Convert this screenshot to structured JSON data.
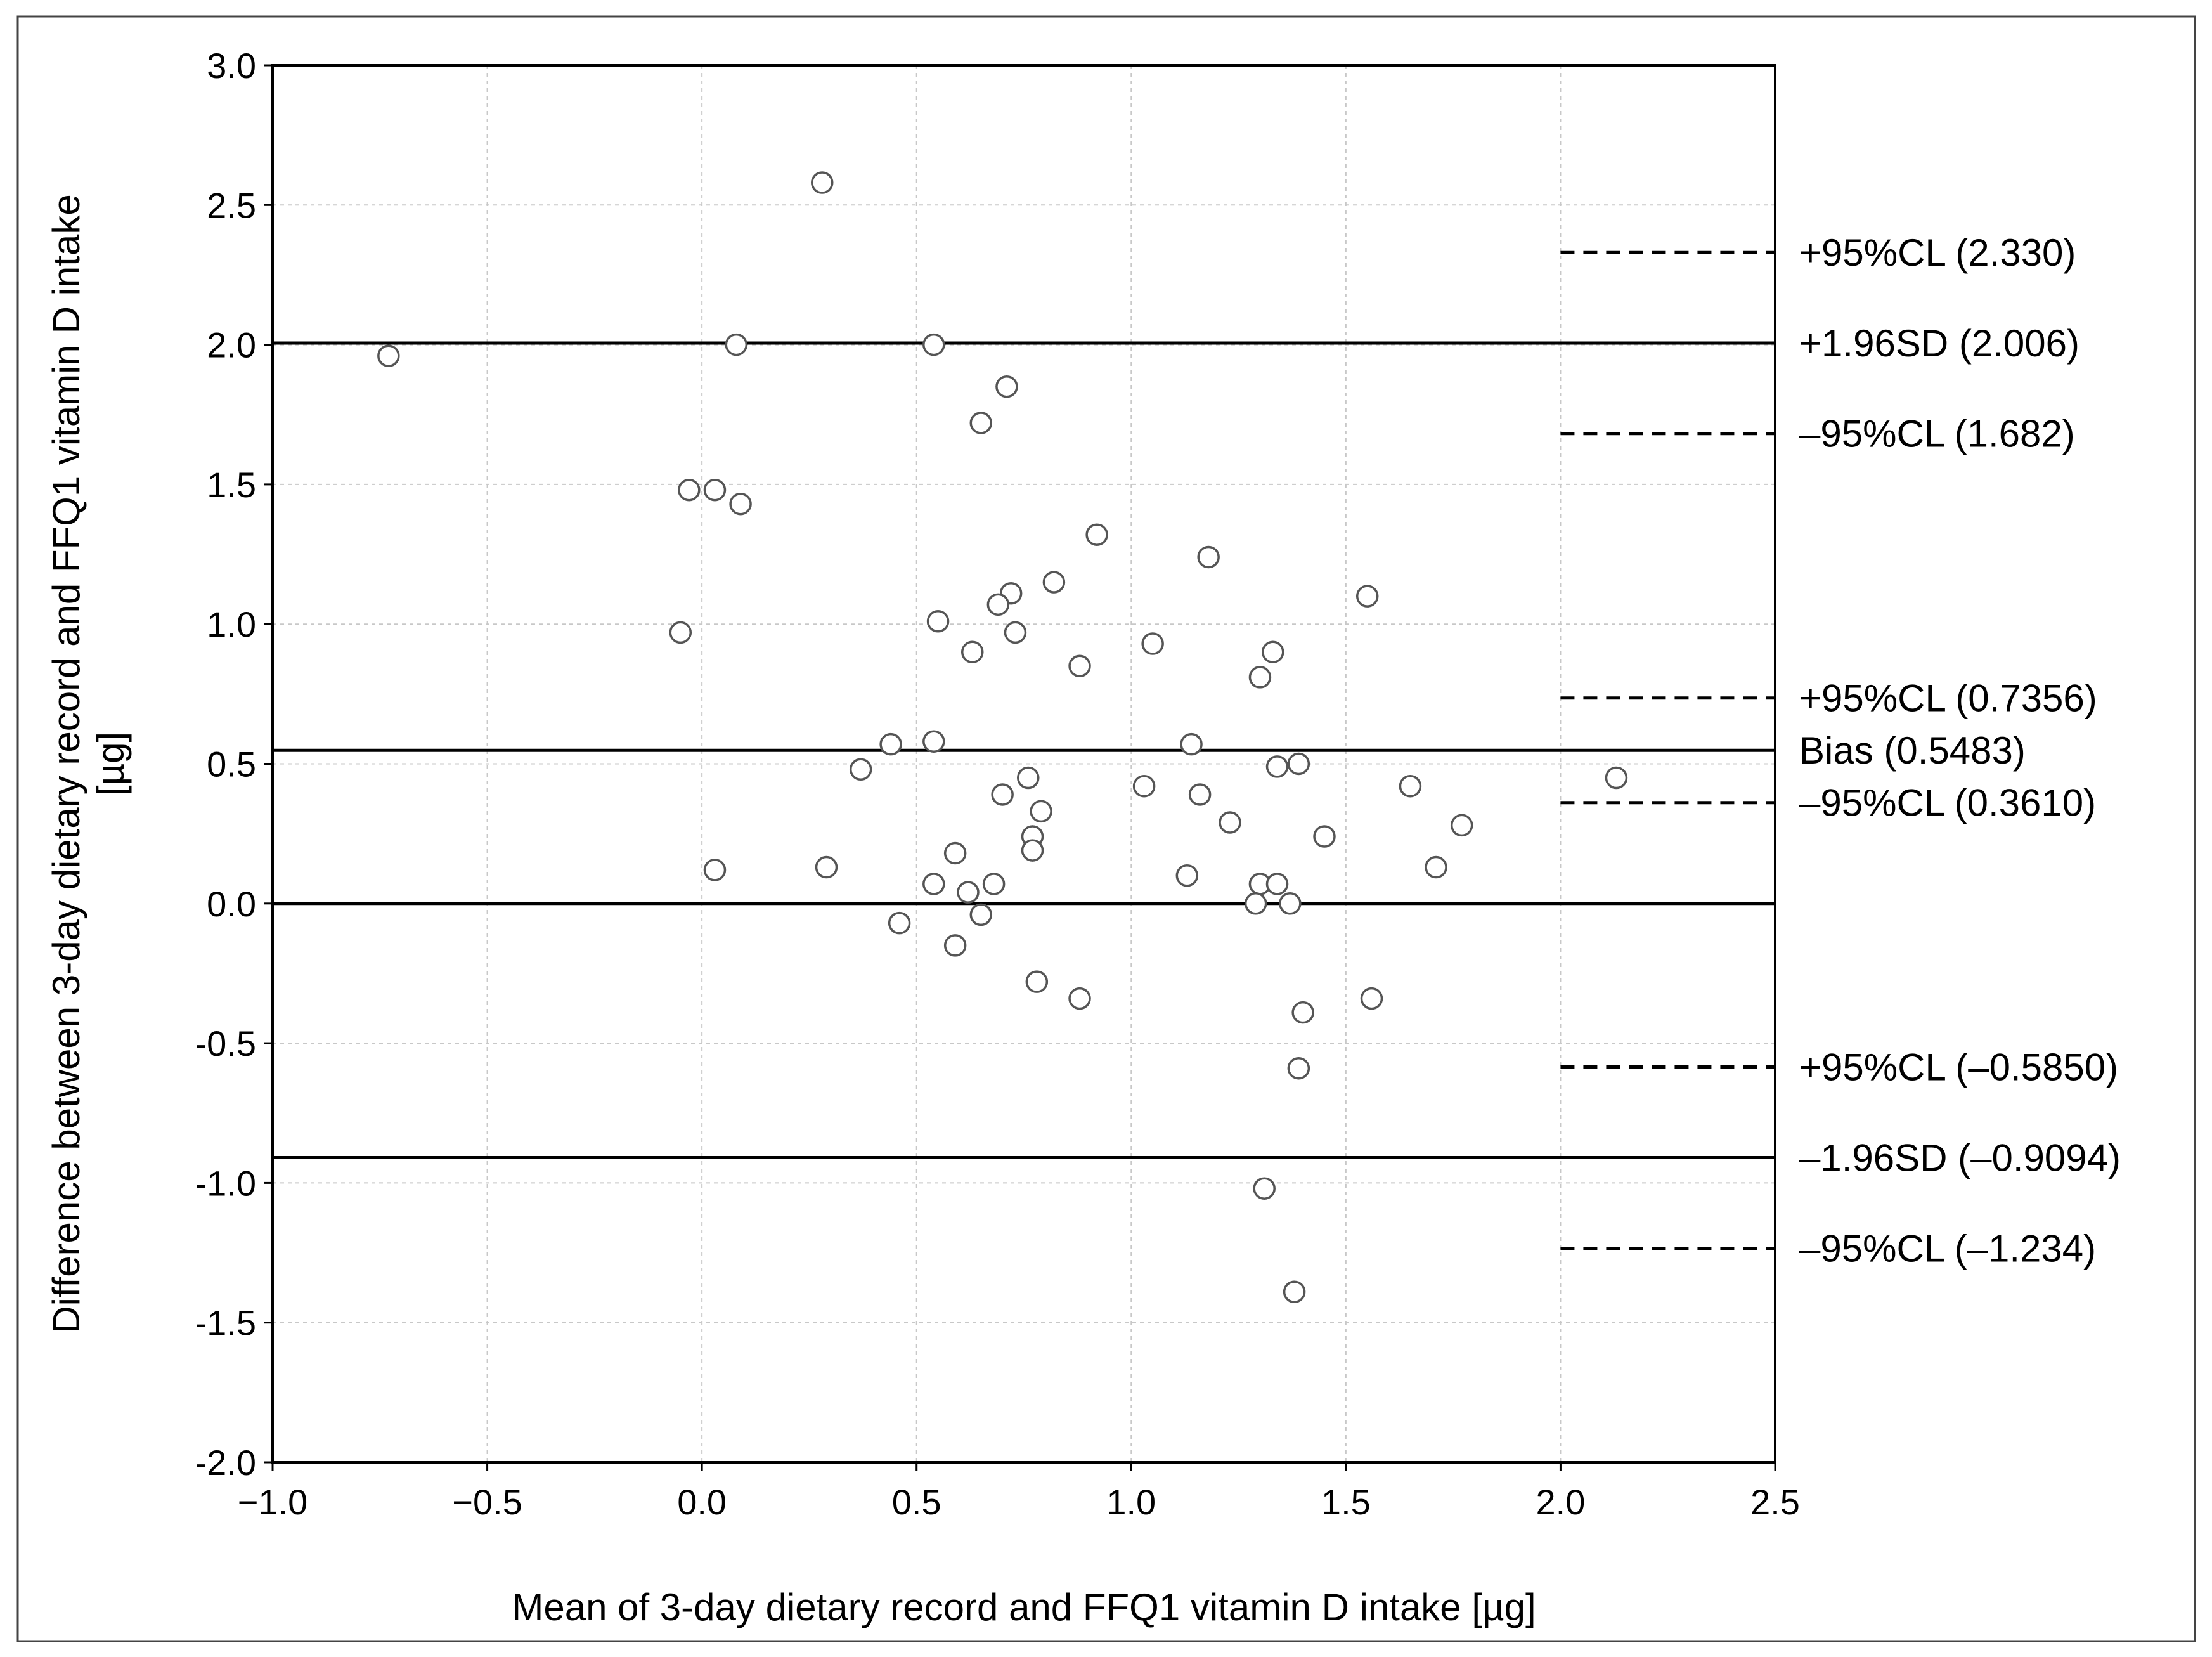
{
  "chart_data": {
    "type": "scatter",
    "title": "",
    "xlabel": "Mean of 3-day dietary record and FFQ1 vitamin D intake [µg]",
    "ylabel": "Difference between 3-day dietary record and FFQ1 vitamin D intake [µg]",
    "xlim": [
      -1.0,
      2.5
    ],
    "ylim": [
      -2.0,
      3.0
    ],
    "x_ticks": [
      "−1.0",
      "−0.5",
      "0.0",
      "0.5",
      "1.0",
      "1.5",
      "2.0",
      "2.5"
    ],
    "x_tick_values": [
      -1.0,
      -0.5,
      0.0,
      0.5,
      1.0,
      1.5,
      2.0,
      2.5
    ],
    "y_ticks": [
      "3.0",
      "2.5",
      "2.0",
      "1.5",
      "1.0",
      "0.5",
      "0.0",
      "-0.5",
      "-1.0",
      "-1.5",
      "-2.0"
    ],
    "y_tick_values": [
      3.0,
      2.5,
      2.0,
      1.5,
      1.0,
      0.5,
      0.0,
      -0.5,
      -1.0,
      -1.5,
      -2.0
    ],
    "grid": true,
    "points": [
      [
        -0.73,
        1.96
      ],
      [
        0.28,
        2.58
      ],
      [
        0.08,
        2.0
      ],
      [
        0.54,
        2.0
      ],
      [
        0.71,
        1.85
      ],
      [
        0.65,
        1.72
      ],
      [
        -0.03,
        1.48
      ],
      [
        0.03,
        1.48
      ],
      [
        0.09,
        1.43
      ],
      [
        0.92,
        1.32
      ],
      [
        1.18,
        1.24
      ],
      [
        0.82,
        1.15
      ],
      [
        0.72,
        1.11
      ],
      [
        1.55,
        1.1
      ],
      [
        0.69,
        1.07
      ],
      [
        0.55,
        1.01
      ],
      [
        -0.05,
        0.97
      ],
      [
        0.73,
        0.97
      ],
      [
        1.05,
        0.93
      ],
      [
        0.63,
        0.9
      ],
      [
        1.33,
        0.9
      ],
      [
        0.88,
        0.85
      ],
      [
        1.3,
        0.81
      ],
      [
        0.44,
        0.57
      ],
      [
        0.54,
        0.58
      ],
      [
        1.14,
        0.57
      ],
      [
        1.34,
        0.49
      ],
      [
        1.39,
        0.5
      ],
      [
        0.37,
        0.48
      ],
      [
        0.76,
        0.45
      ],
      [
        2.13,
        0.45
      ],
      [
        1.03,
        0.42
      ],
      [
        1.65,
        0.42
      ],
      [
        0.7,
        0.39
      ],
      [
        1.16,
        0.39
      ],
      [
        0.79,
        0.33
      ],
      [
        1.23,
        0.29
      ],
      [
        1.77,
        0.28
      ],
      [
        0.77,
        0.24
      ],
      [
        1.45,
        0.24
      ],
      [
        0.77,
        0.19
      ],
      [
        0.59,
        0.18
      ],
      [
        0.03,
        0.12
      ],
      [
        0.29,
        0.13
      ],
      [
        1.71,
        0.13
      ],
      [
        1.13,
        0.1
      ],
      [
        0.54,
        0.07
      ],
      [
        0.68,
        0.07
      ],
      [
        1.3,
        0.07
      ],
      [
        1.34,
        0.07
      ],
      [
        0.62,
        0.04
      ],
      [
        1.29,
        0.0
      ],
      [
        1.37,
        0.0
      ],
      [
        0.65,
        -0.04
      ],
      [
        0.46,
        -0.07
      ],
      [
        0.59,
        -0.15
      ],
      [
        0.78,
        -0.28
      ],
      [
        0.88,
        -0.34
      ],
      [
        1.56,
        -0.34
      ],
      [
        1.4,
        -0.39
      ],
      [
        1.39,
        -0.59
      ],
      [
        1.31,
        -1.02
      ],
      [
        1.38,
        -1.39
      ]
    ],
    "reference_lines": [
      {
        "y": 2.33,
        "style": "dashed",
        "label": "+95%CL (2.330)"
      },
      {
        "y": 2.006,
        "style": "solid",
        "label": "+1.96SD (2.006)"
      },
      {
        "y": 1.682,
        "style": "dashed",
        "label": "–95%CL (1.682)"
      },
      {
        "y": 0.7356,
        "style": "dashed",
        "label": "+95%CL (0.7356)"
      },
      {
        "y": 0.5483,
        "style": "solid",
        "label": "Bias (0.5483)"
      },
      {
        "y": 0.361,
        "style": "dashed",
        "label": "–95%CL (0.3610)"
      },
      {
        "y": 0.0,
        "style": "solid",
        "label": ""
      },
      {
        "y": -0.585,
        "style": "dashed",
        "label": "+95%CL (–0.5850)"
      },
      {
        "y": -0.9094,
        "style": "solid",
        "label": "–1.96SD (–0.9094)"
      },
      {
        "y": -1.234,
        "style": "dashed",
        "label": "–95%CL (–1.234)"
      }
    ],
    "legend": "none"
  }
}
